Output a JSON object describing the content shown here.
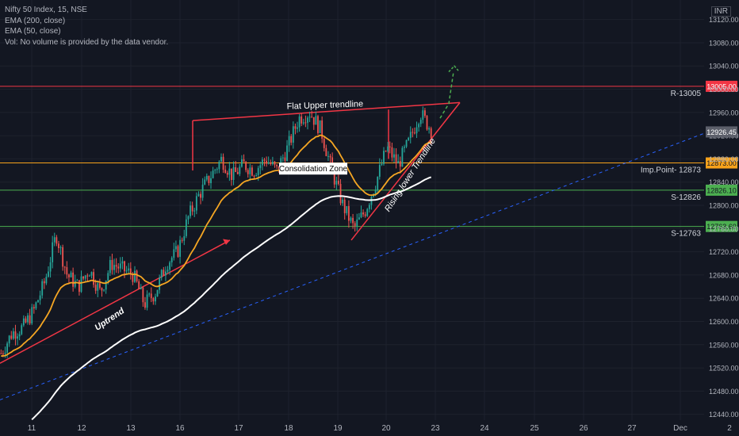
{
  "legend": {
    "symbol": "Nifty 50 Index, 15, NSE",
    "ema200": "EMA (200, close)",
    "ema50": "EMA (50, close)",
    "volume": "Vol: No volume is provided by the data vendor."
  },
  "currency": "INR",
  "colors": {
    "background": "#131722",
    "up": "#26a69a",
    "down": "#ef5350",
    "ema50": "#f5a623",
    "ema200": "#ffffff",
    "trend": "#f23645",
    "resistance": "#f23645",
    "imp_point": "#f7a21b",
    "support1": "#4caf50",
    "support2": "#4caf50",
    "dashed_trend": "#2962ff",
    "projection": "#4caf50"
  },
  "chart_data": {
    "type": "candlestick",
    "ylim": [
      12430,
      13140
    ],
    "y_ticks": [
      12440,
      12480,
      12520,
      12560,
      12600,
      12640,
      12680,
      12720,
      12760,
      12800,
      12840,
      12880,
      12920,
      12960,
      13000,
      13040,
      13080,
      13120
    ],
    "x_ticks": [
      "11",
      "12",
      "13",
      "16",
      "17",
      "18",
      "19",
      "20",
      "23",
      "24",
      "25",
      "26",
      "27",
      "Dec",
      "2"
    ],
    "levels": [
      {
        "name": "R-13005",
        "value": 13005.0,
        "label": "13005.00"
      },
      {
        "name": "Imp.Point- 12873",
        "value": 12873.0,
        "label": "12873.00"
      },
      {
        "name": "S-12826",
        "value": 12826.1,
        "label": "12826.10"
      },
      {
        "name": "S-12763",
        "value": 12763.6,
        "label": "12763.60"
      }
    ],
    "last_price": {
      "value": 12926.45,
      "label": "12926.45"
    },
    "annotations": [
      {
        "text": "Flat Upper trendline"
      },
      {
        "text": "Consolidation Zone"
      },
      {
        "text": "Rising lower Trendline"
      },
      {
        "text": "Uptrend"
      }
    ],
    "anchors": [
      {
        "x": 0,
        "y": 12545
      },
      {
        "x": 1,
        "y": 12580
      },
      {
        "x": 2,
        "y": 12590
      },
      {
        "x": 3,
        "y": 12620
      },
      {
        "x": 4,
        "y": 12670
      },
      {
        "x": 5,
        "y": 12750
      },
      {
        "x": 6,
        "y": 12680
      },
      {
        "x": 7,
        "y": 12660
      },
      {
        "x": 8,
        "y": 12690
      },
      {
        "x": 9,
        "y": 12650
      },
      {
        "x": 10,
        "y": 12700
      },
      {
        "x": 11,
        "y": 12690
      },
      {
        "x": 12,
        "y": 12680
      },
      {
        "x": 13,
        "y": 12630
      },
      {
        "x": 14,
        "y": 12650
      },
      {
        "x": 15,
        "y": 12700
      },
      {
        "x": 16,
        "y": 12720
      },
      {
        "x": 17,
        "y": 12780
      },
      {
        "x": 18,
        "y": 12820
      },
      {
        "x": 19,
        "y": 12850
      },
      {
        "x": 20,
        "y": 12880
      },
      {
        "x": 21,
        "y": 12850
      },
      {
        "x": 22,
        "y": 12870
      },
      {
        "x": 23,
        "y": 12860
      },
      {
        "x": 24,
        "y": 12880
      },
      {
        "x": 25,
        "y": 12860
      },
      {
        "x": 26,
        "y": 12900
      },
      {
        "x": 27,
        "y": 12950
      },
      {
        "x": 28,
        "y": 12960
      },
      {
        "x": 29,
        "y": 12930
      },
      {
        "x": 30,
        "y": 12860
      },
      {
        "x": 31,
        "y": 12800
      },
      {
        "x": 32,
        "y": 12760
      },
      {
        "x": 33,
        "y": 12790
      },
      {
        "x": 34,
        "y": 12840
      },
      {
        "x": 35,
        "y": 12900
      },
      {
        "x": 36,
        "y": 12870
      },
      {
        "x": 37,
        "y": 12910
      },
      {
        "x": 38,
        "y": 12960
      },
      {
        "x": 39,
        "y": 12930
      }
    ]
  }
}
